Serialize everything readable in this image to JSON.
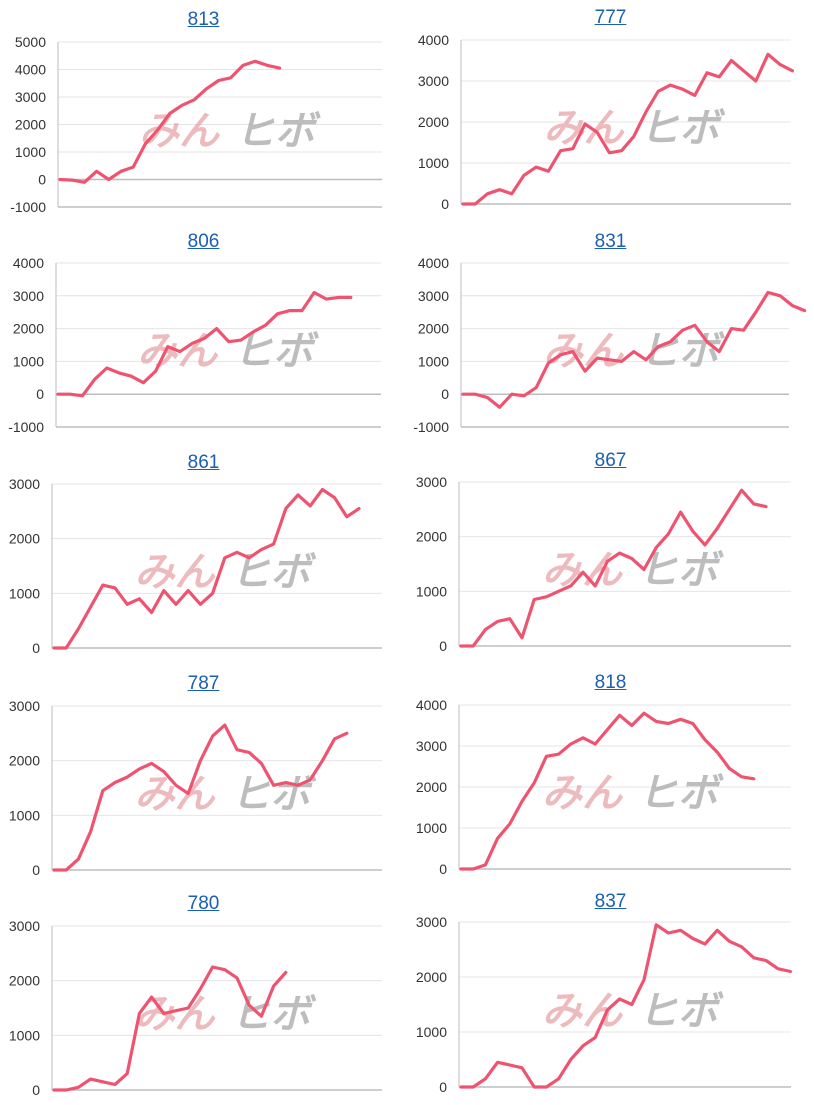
{
  "watermark": {
    "part1": "みん",
    "part2": "ヒボ"
  },
  "colors": {
    "line": "#ee5470",
    "grid": "#e4e4e4",
    "axis": "#bdbdbd",
    "title_link": "#1a5fb4"
  },
  "chart_data": [
    {
      "type": "line",
      "title": "813",
      "yticks": [
        5000,
        4000,
        3000,
        2000,
        1000,
        0,
        -1000
      ],
      "ylim": [
        -1000,
        5000
      ],
      "values": [
        0,
        -20,
        -100,
        300,
        0,
        300,
        450,
        1300,
        1800,
        2400,
        2700,
        2900,
        3300,
        3600,
        3700,
        4150,
        4300,
        4150,
        4050
      ]
    },
    {
      "type": "line",
      "title": "777",
      "yticks": [
        4000,
        3000,
        2000,
        1000,
        0
      ],
      "ylim": [
        0,
        4000
      ],
      "values": [
        0,
        0,
        250,
        350,
        250,
        700,
        900,
        800,
        1300,
        1350,
        1950,
        1750,
        1250,
        1300,
        1650,
        2250,
        2750,
        2900,
        2800,
        2650,
        3200,
        3100,
        3500,
        3250,
        3000,
        3650,
        3400,
        3250
      ]
    },
    {
      "type": "line",
      "title": "806",
      "yticks": [
        4000,
        3000,
        2000,
        1000,
        0,
        -1000
      ],
      "ylim": [
        -1000,
        4000
      ],
      "values": [
        0,
        0,
        -50,
        450,
        800,
        650,
        550,
        350,
        700,
        1450,
        1300,
        1550,
        1700,
        2000,
        1600,
        1650,
        1900,
        2100,
        2450,
        2550,
        2550,
        3100,
        2900,
        2950,
        2950
      ]
    },
    {
      "type": "line",
      "title": "831",
      "yticks": [
        4000,
        3000,
        2000,
        1000,
        0,
        -1000
      ],
      "ylim": [
        -1000,
        4000
      ],
      "values": [
        0,
        0,
        -100,
        -400,
        0,
        -50,
        200,
        950,
        1200,
        1300,
        700,
        1100,
        1050,
        1000,
        1300,
        1050,
        1450,
        1600,
        1950,
        2100,
        1600,
        1300,
        2000,
        1950,
        2500,
        3100,
        3000,
        2700,
        2550
      ]
    },
    {
      "type": "line",
      "title": "861",
      "yticks": [
        3000,
        2000,
        1000,
        0
      ],
      "ylim": [
        0,
        3000
      ],
      "values": [
        0,
        0,
        350,
        750,
        1150,
        1100,
        800,
        900,
        650,
        1050,
        800,
        1050,
        800,
        1000,
        1650,
        1750,
        1650,
        1800,
        1900,
        2550,
        2800,
        2600,
        2900,
        2750,
        2400,
        2550
      ]
    },
    {
      "type": "line",
      "title": "867",
      "yticks": [
        3000,
        2000,
        1000,
        0
      ],
      "ylim": [
        0,
        3000
      ],
      "values": [
        0,
        0,
        300,
        450,
        500,
        150,
        850,
        900,
        1000,
        1100,
        1350,
        1100,
        1550,
        1700,
        1600,
        1400,
        1800,
        2050,
        2450,
        2100,
        1850,
        2150,
        2500,
        2850,
        2600,
        2550
      ]
    },
    {
      "type": "line",
      "title": "787",
      "yticks": [
        3000,
        2000,
        1000,
        0
      ],
      "ylim": [
        0,
        3000
      ],
      "values": [
        0,
        0,
        200,
        700,
        1450,
        1600,
        1700,
        1850,
        1950,
        1800,
        1550,
        1400,
        2000,
        2450,
        2650,
        2200,
        2150,
        1950,
        1550,
        1600,
        1550,
        1650,
        2000,
        2400,
        2500
      ]
    },
    {
      "type": "line",
      "title": "818",
      "yticks": [
        4000,
        3000,
        2000,
        1000,
        0
      ],
      "ylim": [
        0,
        4000
      ],
      "values": [
        0,
        0,
        100,
        750,
        1100,
        1650,
        2100,
        2750,
        2800,
        3050,
        3200,
        3050,
        3400,
        3750,
        3500,
        3800,
        3600,
        3550,
        3650,
        3550,
        3150,
        2850,
        2450,
        2250,
        2200
      ]
    },
    {
      "type": "line",
      "title": "780",
      "yticks": [
        3000,
        2000,
        1000,
        0
      ],
      "ylim": [
        0,
        3000
      ],
      "values": [
        0,
        0,
        50,
        200,
        150,
        100,
        300,
        1400,
        1700,
        1400,
        1450,
        1500,
        1850,
        2250,
        2200,
        2050,
        1550,
        1350,
        1900,
        2150
      ]
    },
    {
      "type": "line",
      "title": "837",
      "yticks": [
        3000,
        2000,
        1000,
        0
      ],
      "ylim": [
        0,
        3000
      ],
      "values": [
        0,
        0,
        150,
        450,
        400,
        350,
        0,
        0,
        150,
        500,
        750,
        900,
        1400,
        1600,
        1500,
        1950,
        2950,
        2800,
        2850,
        2700,
        2600,
        2850,
        2650,
        2550,
        2350,
        2300,
        2150,
        2100
      ]
    }
  ]
}
